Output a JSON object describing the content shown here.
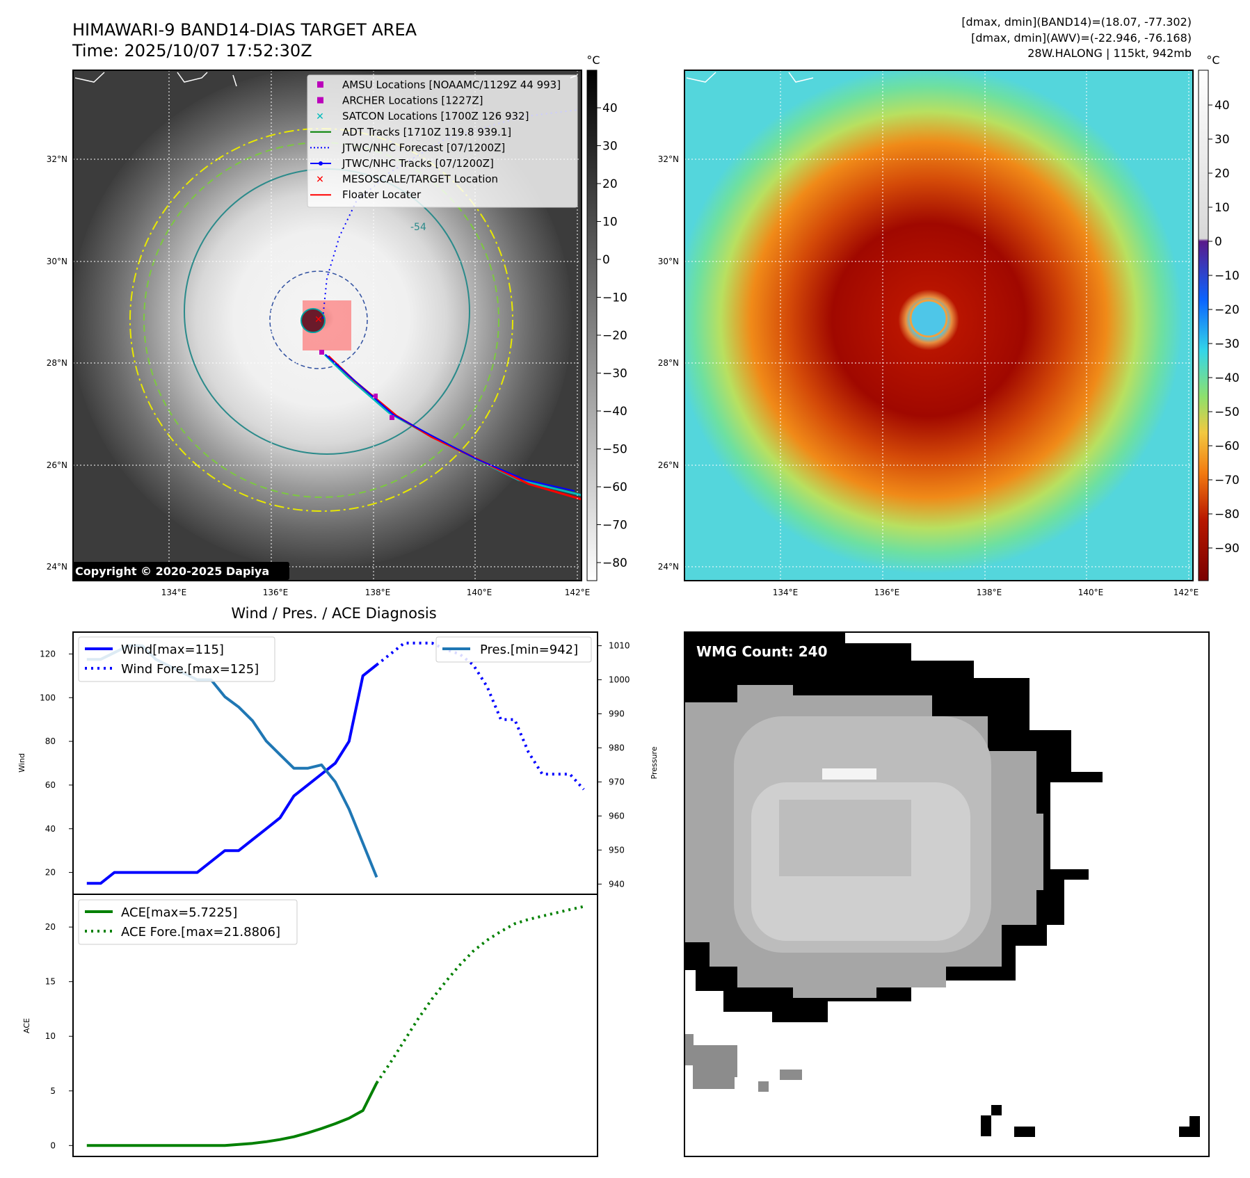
{
  "header": {
    "title_line1": "HIMAWARI-9 BAND14-DIAS TARGET AREA",
    "title_line2": "Time: 2025/10/07 17:52:30Z",
    "info_line1": "[dmax, dmin](BAND14)=(18.07, -77.302)",
    "info_line2": "[dmax, dmin](AWV)=(-22.946, -76.168)",
    "info_line3": "28W.HALONG | 115kt, 942mb"
  },
  "copyright": "Copyright © 2020-2025 Dapiya",
  "map": {
    "lat_labels": [
      "32°N",
      "30°N",
      "28°N",
      "26°N",
      "24°N"
    ],
    "lon_labels": [
      "134°E",
      "136°E",
      "138°E",
      "140°E",
      "142°E"
    ],
    "contour_label": "-54",
    "unit": "°C",
    "colorbar_gray_ticks": [
      "40",
      "30",
      "20",
      "10",
      "0",
      "−10",
      "−20",
      "−30",
      "−40",
      "−50",
      "−60",
      "−70",
      "−80"
    ],
    "colorbar_color_ticks": [
      "40",
      "30",
      "20",
      "10",
      "0",
      "−10",
      "−20",
      "−30",
      "−40",
      "−50",
      "−60",
      "−70",
      "−80",
      "−90"
    ],
    "legend": [
      {
        "label": "AMSU Locations [NOAAMC/1129Z 44 993]",
        "color": "#bb00bb",
        "marker": "square"
      },
      {
        "label": "ARCHER Locations [1227Z]",
        "color": "#bb00bb",
        "marker": "square"
      },
      {
        "label": "SATCON Locations [1700Z 126 932]",
        "color": "#00bbbb",
        "marker": "x"
      },
      {
        "label": "ADT Tracks [1710Z 119.8 939.1]",
        "color": "#008000",
        "marker": "line"
      },
      {
        "label": "JTWC/NHC Forecast [07/1200Z]",
        "color": "#0000ff",
        "marker": "dotted"
      },
      {
        "label": "JTWC/NHC Tracks [07/1200Z]",
        "color": "#0000ff",
        "marker": "line-dot"
      },
      {
        "label": "MESOSCALE/TARGET Location",
        "color": "#ff0000",
        "marker": "x"
      },
      {
        "label": "Floater Locater",
        "color": "#ff0000",
        "marker": "line"
      }
    ]
  },
  "diag": {
    "title": "Wind / Pres. / ACE Diagnosis",
    "wind_axis_label": "Wind",
    "pres_axis_label": "Pressure",
    "ace_axis_label": "ACE",
    "wind_ticks": [
      "120",
      "100",
      "80",
      "60",
      "40",
      "20"
    ],
    "pres_ticks": [
      "1010",
      "1000",
      "990",
      "980",
      "970",
      "960",
      "950",
      "940"
    ],
    "ace_ticks": [
      "20",
      "15",
      "10",
      "5",
      "0"
    ],
    "legend_wind": "Wind[max=115]",
    "legend_wind_fore": "Wind Fore.[max=125]",
    "legend_pres": "Pres.[min=942]",
    "legend_ace": "ACE[max=5.7225]",
    "legend_ace_fore": "ACE Fore.[max=21.8806]"
  },
  "wmg": {
    "label": "WMG Count: 240"
  },
  "chart_data": [
    {
      "type": "line",
      "title": "Wind / Pres. / ACE Diagnosis",
      "ylabel": "Wind",
      "ylim": [
        10,
        130
      ],
      "xlim": [
        -1,
        37
      ],
      "series": [
        {
          "name": "Wind[max=115]",
          "color": "#0000ff",
          "style": "solid",
          "x": [
            0,
            1,
            2,
            3,
            4,
            5,
            6,
            7,
            8,
            9,
            10,
            11,
            12,
            13,
            14,
            15,
            16,
            17,
            18,
            19,
            20,
            21
          ],
          "values": [
            15,
            15,
            20,
            20,
            20,
            20,
            20,
            20,
            20,
            25,
            30,
            30,
            35,
            40,
            45,
            55,
            60,
            65,
            70,
            80,
            110,
            115
          ]
        },
        {
          "name": "Wind Fore.[max=125]",
          "color": "#0000ff",
          "style": "dotted",
          "x": [
            21,
            22,
            23,
            24,
            25,
            26,
            27,
            28,
            29,
            30,
            31,
            32,
            33,
            34,
            35,
            36
          ],
          "values": [
            115,
            120,
            125,
            125,
            125,
            122,
            120,
            115,
            105,
            90,
            90,
            75,
            65,
            65,
            65,
            58
          ]
        }
      ]
    },
    {
      "type": "line",
      "ylabel": "Pressure",
      "ylim": [
        937,
        1014
      ],
      "xlim": [
        -1,
        37
      ],
      "series": [
        {
          "name": "Pres.[min=942]",
          "color": "#1f77b4",
          "style": "solid",
          "x": [
            0,
            1,
            2,
            3,
            4,
            5,
            6,
            7,
            8,
            9,
            10,
            11,
            12,
            13,
            14,
            15,
            16,
            17,
            18,
            19,
            20,
            21
          ],
          "values": [
            1006,
            1006,
            1008,
            1010,
            1010,
            1006,
            1004,
            1002,
            1000,
            1000,
            995,
            992,
            988,
            982,
            978,
            974,
            974,
            975,
            970,
            962,
            952,
            942
          ]
        }
      ]
    },
    {
      "type": "line",
      "ylabel": "ACE",
      "ylim": [
        -1,
        23
      ],
      "xlim": [
        -1,
        37
      ],
      "series": [
        {
          "name": "ACE[max=5.7225]",
          "color": "#008000",
          "style": "solid",
          "x": [
            0,
            2,
            4,
            6,
            8,
            10,
            11,
            12,
            13,
            14,
            15,
            16,
            17,
            18,
            19,
            20,
            21
          ],
          "values": [
            0,
            0,
            0,
            0,
            0,
            0,
            0.1,
            0.2,
            0.35,
            0.55,
            0.8,
            1.15,
            1.55,
            2.0,
            2.5,
            3.2,
            5.72
          ]
        },
        {
          "name": "ACE Fore.[max=21.8806]",
          "color": "#008000",
          "style": "dotted",
          "x": [
            21,
            22,
            23,
            24,
            25,
            26,
            27,
            28,
            29,
            30,
            31,
            32,
            33,
            34,
            35,
            36
          ],
          "values": [
            5.72,
            7.6,
            9.6,
            11.6,
            13.4,
            15.0,
            16.5,
            17.8,
            18.8,
            19.6,
            20.3,
            20.7,
            21.0,
            21.3,
            21.6,
            21.88
          ]
        }
      ]
    }
  ]
}
